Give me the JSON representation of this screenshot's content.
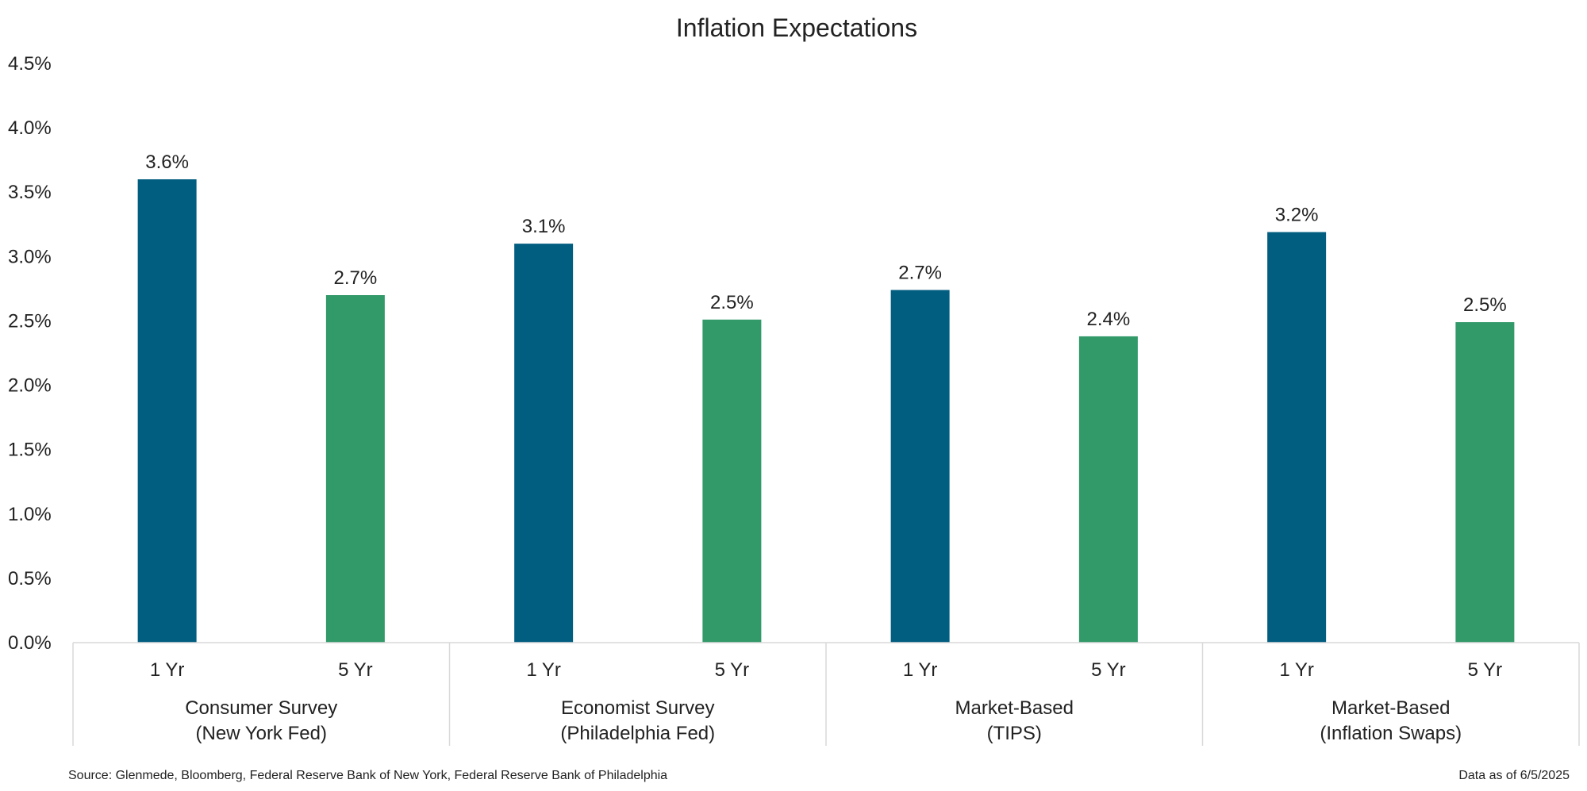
{
  "chart_data": {
    "type": "bar",
    "title": "Inflation Expectations",
    "ylim": [
      0,
      4.5
    ],
    "ytick_step": 0.5,
    "yticks": [
      "0.0%",
      "0.5%",
      "1.0%",
      "1.5%",
      "2.0%",
      "2.5%",
      "3.0%",
      "3.5%",
      "4.0%",
      "4.5%"
    ],
    "grid": false,
    "groups": [
      {
        "label_lines": [
          "Consumer Survey",
          "(New York Fed)"
        ],
        "bars": [
          {
            "category": "1 Yr",
            "value": 3.6,
            "label": "3.6%",
            "color": "#025e80"
          },
          {
            "category": "5 Yr",
            "value": 2.7,
            "label": "2.7%",
            "color": "#329969"
          }
        ]
      },
      {
        "label_lines": [
          "Economist Survey",
          "(Philadelphia Fed)"
        ],
        "bars": [
          {
            "category": "1 Yr",
            "value": 3.1,
            "label": "3.1%",
            "color": "#025e80"
          },
          {
            "category": "5 Yr",
            "value": 2.51,
            "label": "2.5%",
            "color": "#329969"
          }
        ]
      },
      {
        "label_lines": [
          "Market-Based",
          "(TIPS)"
        ],
        "bars": [
          {
            "category": "1 Yr",
            "value": 2.74,
            "label": "2.7%",
            "color": "#025e80"
          },
          {
            "category": "5 Yr",
            "value": 2.38,
            "label": "2.4%",
            "color": "#329969"
          }
        ]
      },
      {
        "label_lines": [
          "Market-Based",
          "(Inflation Swaps)"
        ],
        "bars": [
          {
            "category": "1 Yr",
            "value": 3.19,
            "label": "3.2%",
            "color": "#025e80"
          },
          {
            "category": "5 Yr",
            "value": 2.49,
            "label": "2.5%",
            "color": "#329969"
          }
        ]
      }
    ]
  },
  "footer": {
    "source": "Source: Glenmede, Bloomberg, Federal Reserve Bank of New York, Federal Reserve Bank of Philadelphia",
    "as_of": "Data as of 6/5/2025"
  }
}
